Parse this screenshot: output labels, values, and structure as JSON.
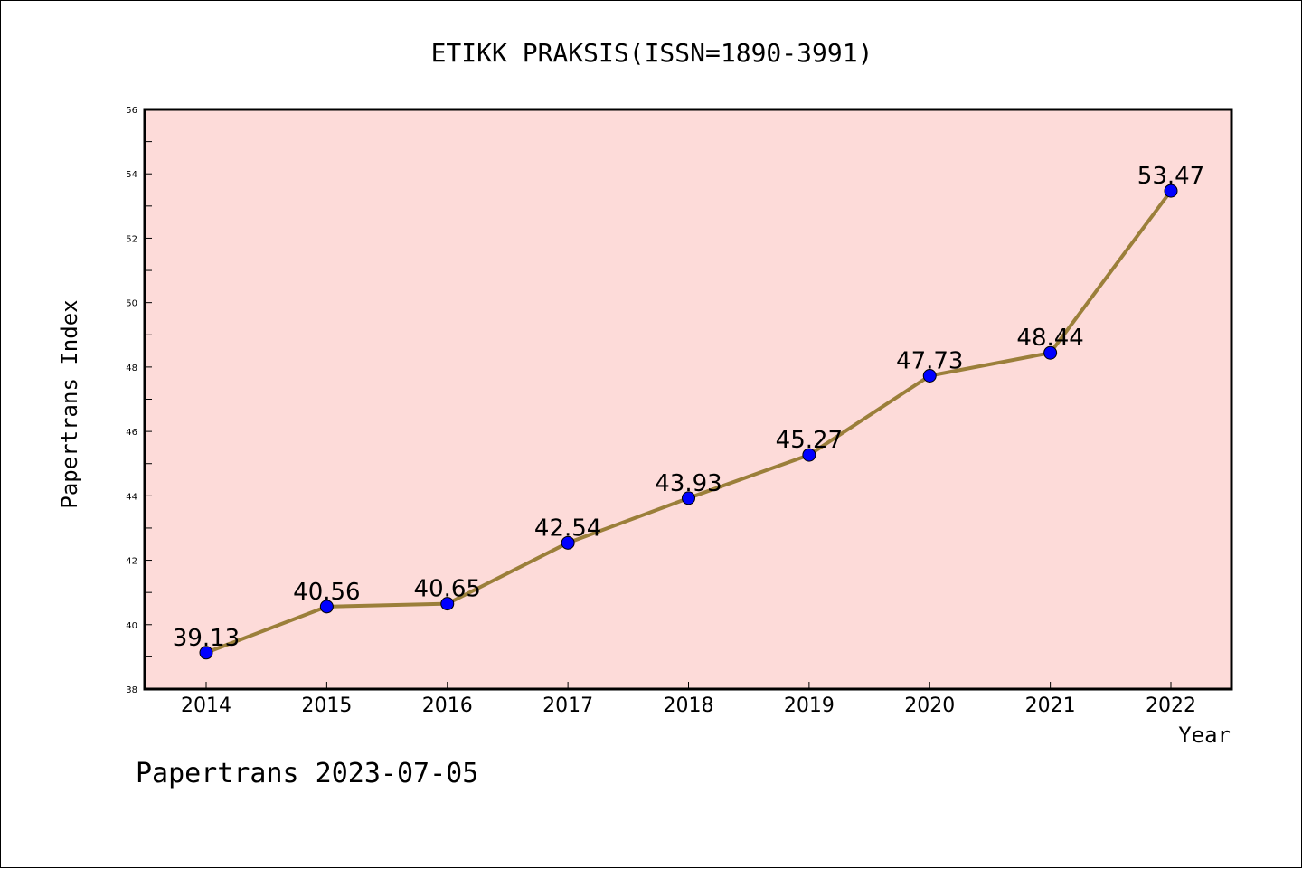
{
  "chart_data": {
    "type": "line",
    "title": "ETIKK PRAKSIS(ISSN=1890-3991)",
    "xlabel": "Year",
    "ylabel": "Papertrans Index",
    "categories": [
      "2014",
      "2015",
      "2016",
      "2017",
      "2018",
      "2019",
      "2020",
      "2021",
      "2022"
    ],
    "series": [
      {
        "values": [
          39.13,
          40.56,
          40.65,
          42.54,
          43.93,
          45.27,
          47.73,
          48.44,
          53.47
        ],
        "labels": [
          "39.13",
          "40.56",
          "40.65",
          "42.54",
          "43.93",
          "45.27",
          "47.73",
          "48.44",
          "53.47"
        ],
        "color": "#9b7f3a",
        "marker_color": "#0000ff"
      }
    ],
    "ylim": [
      38,
      56
    ],
    "yticks": [
      38,
      40,
      42,
      44,
      46,
      48,
      50,
      52,
      54,
      56
    ],
    "ytick_labels": [
      "38",
      "40",
      "42",
      "44",
      "46",
      "48",
      "50",
      "52",
      "54",
      "56"
    ],
    "grid": false,
    "legend": "none",
    "plot_background": "#fddbd9",
    "footer": "Papertrans 2023-07-05"
  }
}
